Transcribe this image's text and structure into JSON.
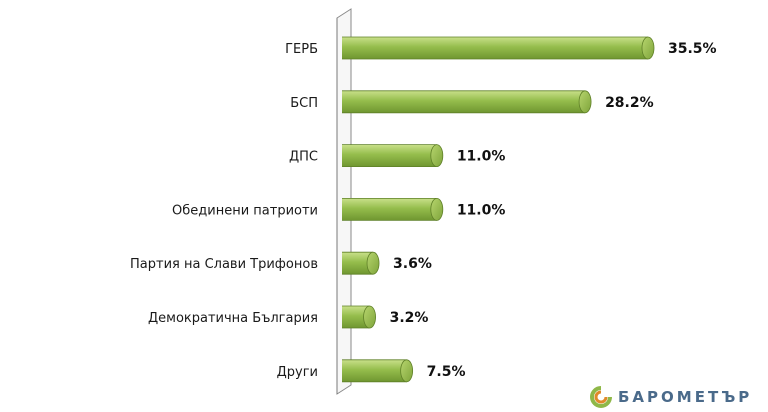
{
  "chart_data": {
    "type": "bar",
    "orientation": "horizontal",
    "categories": [
      "ГЕРБ",
      "БСП",
      "ДПС",
      "Обединени патриоти",
      "Партия на Слави Трифонов",
      "Демократична България",
      "Други"
    ],
    "values": [
      35.5,
      28.2,
      11.0,
      11.0,
      3.6,
      3.2,
      7.5
    ],
    "data_labels": [
      "35.5%",
      "28.2%",
      "11.0%",
      "11.0%",
      "3.6%",
      "3.2%",
      "7.5%"
    ],
    "value_unit": "%",
    "xlim": [
      0,
      40
    ],
    "grid": false,
    "legend": "none",
    "bar_color": "#8fb848"
  },
  "logo": {
    "text": "БАРОМЕТЪР"
  }
}
